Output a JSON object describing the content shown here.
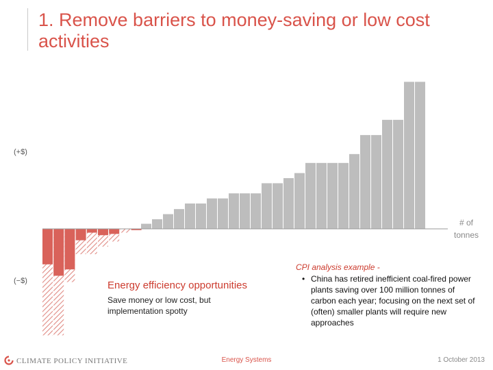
{
  "slide": {
    "title": "1. Remove barriers to money-saving or low cost activities"
  },
  "colors": {
    "accent": "#d9534a",
    "positive_bar": "#bdbdbd",
    "negative_bar": "#d9625a",
    "hatch": "#e08b84"
  },
  "chart_data": {
    "type": "bar",
    "title": "",
    "ylabel_positive": "(+$)",
    "ylabel_negative": "(−$)",
    "xlabel": "# of tonnes",
    "negative_bars": [
      {
        "solid": -1.4,
        "hatched": -4.2
      },
      {
        "solid": -1.85,
        "hatched": -4.2
      },
      {
        "solid": -1.6,
        "hatched": -2.1
      },
      {
        "solid": -0.45,
        "hatched": -1.0
      },
      {
        "solid": -0.15,
        "hatched": -1.0
      },
      {
        "solid": -0.25,
        "hatched": -0.7
      },
      {
        "solid": -0.2,
        "hatched": -0.5
      },
      {
        "solid": 0,
        "hatched": -0.15
      },
      {
        "solid": -0.05,
        "hatched": 0
      }
    ],
    "positive_values": [
      0.2,
      0.38,
      0.58,
      0.78,
      1.0,
      1.0,
      1.2,
      1.2,
      1.4,
      1.4,
      1.4,
      1.8,
      1.8,
      2.0,
      2.2,
      2.6,
      2.6,
      2.6,
      2.6,
      2.95,
      3.7,
      3.7,
      4.3,
      4.3,
      5.8,
      5.8
    ]
  },
  "callouts": {
    "energy_title": "Energy efficiency opportunities",
    "energy_desc": "Save money or low cost, but implementation spotty",
    "cpi_title": "CPI analysis example -",
    "cpi_bullets": [
      "China has retired inefficient coal-fired power plants saving over 100 million tonnes of carbon each year; focusing on the next set of (often) smaller plants will require new approaches"
    ]
  },
  "footer": {
    "org": "CLIMATE POLICY INITIATIVE",
    "section": "Energy Systems",
    "date": "1 October 2013"
  }
}
